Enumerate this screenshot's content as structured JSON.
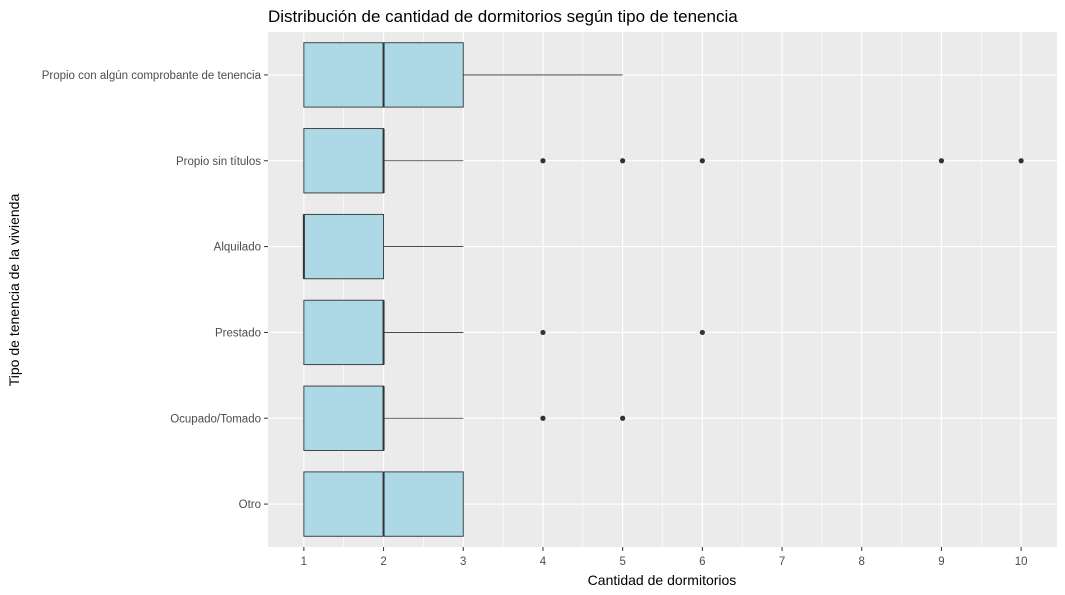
{
  "chart_data": {
    "type": "boxplot",
    "orientation": "horizontal",
    "title": "Distribución de cantidad de dormitorios según tipo de tenencia",
    "xlabel": "Cantidad de dormitorios",
    "ylabel": "Tipo de tenencia de la vivienda",
    "xlim": [
      0.55,
      10.45
    ],
    "x_ticks": [
      "1",
      "2",
      "3",
      "4",
      "5",
      "6",
      "7",
      "8",
      "9",
      "10"
    ],
    "grid": true,
    "colors": {
      "panel": "#ebebeb",
      "gridline": "#ffffff",
      "box_fill": "#add8e6",
      "box_stroke": "#333333",
      "outlier": "#333333"
    },
    "categories": [
      "Propio con algún comprobante de tenencia",
      "Propio sin títulos",
      "Alquilado",
      "Prestado",
      "Ocupado/Tomado",
      "Otro"
    ],
    "boxes": [
      {
        "category": "Propio con algún comprobante de tenencia",
        "min": 1,
        "q1": 1,
        "median": 2,
        "q3": 3,
        "max": 5,
        "outliers": []
      },
      {
        "category": "Propio sin títulos",
        "min": 1,
        "q1": 1,
        "median": 2,
        "q3": 2,
        "max": 3,
        "outliers": [
          4,
          5,
          6,
          9,
          10
        ]
      },
      {
        "category": "Alquilado",
        "min": 1,
        "q1": 1,
        "median": 1,
        "q3": 2,
        "max": 3,
        "outliers": []
      },
      {
        "category": "Prestado",
        "min": 1,
        "q1": 1,
        "median": 2,
        "q3": 2,
        "max": 3,
        "outliers": [
          4,
          6
        ]
      },
      {
        "category": "Ocupado/Tomado",
        "min": 1,
        "q1": 1,
        "median": 2,
        "q3": 2,
        "max": 3,
        "outliers": [
          4,
          5
        ]
      },
      {
        "category": "Otro",
        "min": 1,
        "q1": 1,
        "median": 2,
        "q3": 3,
        "max": 3,
        "outliers": []
      }
    ]
  }
}
